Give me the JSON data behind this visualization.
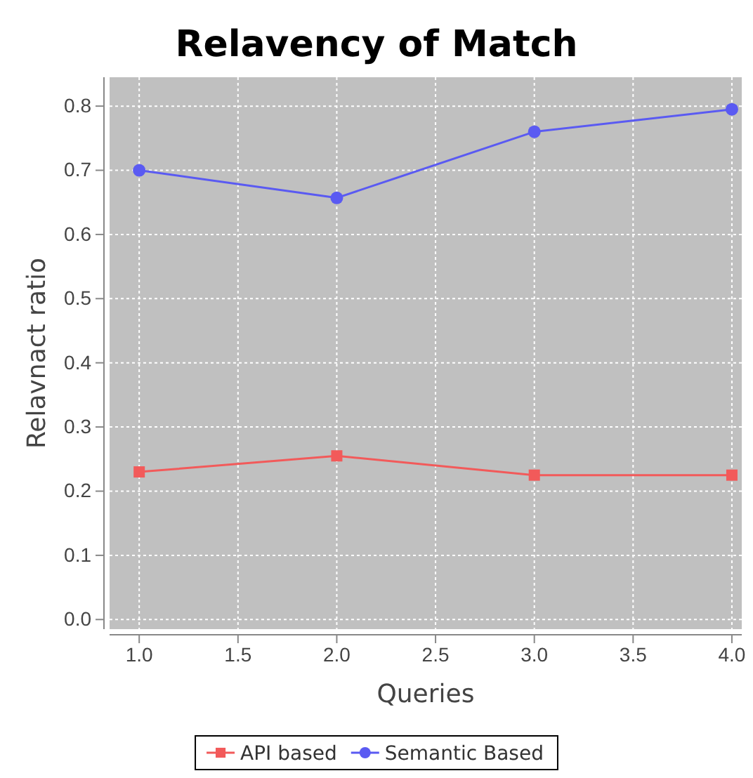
{
  "chart_data": {
    "type": "line",
    "title": "Relavency of Match",
    "xlabel": "Queries",
    "ylabel": "Relavnact ratio",
    "xlim": [
      0.85,
      4.05
    ],
    "xticks": [
      {
        "value": 1,
        "label": "1.0"
      },
      {
        "value": 1.5,
        "label": "1.5"
      },
      {
        "value": 2,
        "label": "2.0"
      },
      {
        "value": 2.5,
        "label": "2.5"
      },
      {
        "value": 3,
        "label": "3.0"
      },
      {
        "value": 3.5,
        "label": "3.5"
      },
      {
        "value": 4,
        "label": "4.0"
      }
    ],
    "ylim": [
      -0.015,
      0.845
    ],
    "yticks": [
      {
        "value": 0,
        "label": "0.0"
      },
      0.1,
      0.2,
      0.3,
      0.4,
      0.5,
      0.6,
      0.7,
      0.8
    ],
    "x": [
      1,
      2,
      3,
      4
    ],
    "grid": true,
    "legend": "bottom",
    "series": [
      {
        "name": "API based",
        "color": "#f25a5a",
        "marker": "square",
        "values": [
          0.23,
          0.255,
          0.225,
          0.225
        ]
      },
      {
        "name": "Semantic Based",
        "color": "#5a5af2",
        "marker": "circle",
        "values": [
          0.7,
          0.657,
          0.76,
          0.795
        ]
      }
    ]
  }
}
